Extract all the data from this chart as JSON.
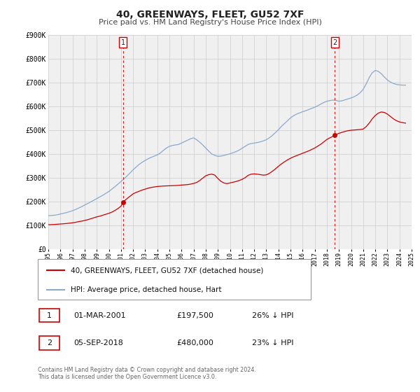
{
  "title": "40, GREENWAYS, FLEET, GU52 7XF",
  "subtitle": "Price paid vs. HM Land Registry's House Price Index (HPI)",
  "legend_label_red": "40, GREENWAYS, FLEET, GU52 7XF (detached house)",
  "legend_label_blue": "HPI: Average price, detached house, Hart",
  "annotation1_label": "1",
  "annotation1_date": "01-MAR-2001",
  "annotation1_price": "£197,500",
  "annotation1_hpi": "26% ↓ HPI",
  "annotation2_label": "2",
  "annotation2_date": "05-SEP-2018",
  "annotation2_price": "£480,000",
  "annotation2_hpi": "23% ↓ HPI",
  "footer": "Contains HM Land Registry data © Crown copyright and database right 2024.\nThis data is licensed under the Open Government Licence v3.0.",
  "red_color": "#cc0000",
  "blue_color": "#88aacc",
  "vline_color": "#cc0000",
  "grid_color": "#cccccc",
  "background_color": "#ffffff",
  "plot_bg_color": "#f0f0f0",
  "ylim": [
    0,
    900000
  ],
  "yticks": [
    0,
    100000,
    200000,
    300000,
    400000,
    500000,
    600000,
    700000,
    800000,
    900000
  ],
  "ytick_labels": [
    "£0",
    "£100K",
    "£200K",
    "£300K",
    "£400K",
    "£500K",
    "£600K",
    "£700K",
    "£800K",
    "£900K"
  ],
  "year_start": 1995,
  "year_end": 2025,
  "vline1_year": 2001.17,
  "vline2_year": 2018.67,
  "dot1_year": 2001.17,
  "dot1_value": 197500,
  "dot2_year": 2018.67,
  "dot2_value": 480000,
  "red_x": [
    1995.0,
    1995.25,
    1995.5,
    1995.75,
    1996.0,
    1996.25,
    1996.5,
    1996.75,
    1997.0,
    1997.25,
    1997.5,
    1997.75,
    1998.0,
    1998.25,
    1998.5,
    1998.75,
    1999.0,
    1999.25,
    1999.5,
    1999.75,
    2000.0,
    2000.25,
    2000.5,
    2000.75,
    2001.0,
    2001.17,
    2001.5,
    2001.75,
    2002.0,
    2002.25,
    2002.5,
    2002.75,
    2003.0,
    2003.25,
    2003.5,
    2003.75,
    2004.0,
    2004.25,
    2004.5,
    2004.75,
    2005.0,
    2005.25,
    2005.5,
    2005.75,
    2006.0,
    2006.25,
    2006.5,
    2006.75,
    2007.0,
    2007.25,
    2007.5,
    2007.75,
    2008.0,
    2008.25,
    2008.5,
    2008.75,
    2009.0,
    2009.25,
    2009.5,
    2009.75,
    2010.0,
    2010.25,
    2010.5,
    2010.75,
    2011.0,
    2011.25,
    2011.5,
    2011.75,
    2012.0,
    2012.25,
    2012.5,
    2012.75,
    2013.0,
    2013.25,
    2013.5,
    2013.75,
    2014.0,
    2014.25,
    2014.5,
    2014.75,
    2015.0,
    2015.25,
    2015.5,
    2015.75,
    2016.0,
    2016.25,
    2016.5,
    2016.75,
    2017.0,
    2017.25,
    2017.5,
    2017.75,
    2018.0,
    2018.25,
    2018.5,
    2018.67,
    2019.0,
    2019.25,
    2019.5,
    2019.75,
    2020.0,
    2020.25,
    2020.5,
    2020.75,
    2021.0,
    2021.25,
    2021.5,
    2021.75,
    2022.0,
    2022.25,
    2022.5,
    2022.75,
    2023.0,
    2023.25,
    2023.5,
    2023.75,
    2024.0,
    2024.25,
    2024.5
  ],
  "red_y": [
    102000,
    102500,
    103000,
    104000,
    105000,
    106000,
    107000,
    108500,
    110000,
    112000,
    115000,
    117000,
    120000,
    123000,
    127000,
    131000,
    135000,
    138000,
    142000,
    146000,
    150000,
    155000,
    162000,
    170000,
    180000,
    197500,
    212000,
    222000,
    232000,
    238000,
    243000,
    248000,
    252000,
    256000,
    259000,
    261000,
    263000,
    264000,
    265000,
    265500,
    266000,
    266500,
    267000,
    268000,
    269000,
    270000,
    271000,
    273000,
    276000,
    280000,
    288000,
    298000,
    308000,
    313000,
    315000,
    311000,
    297000,
    285000,
    278000,
    275000,
    278000,
    281000,
    284000,
    288000,
    293000,
    300000,
    310000,
    315000,
    316000,
    315000,
    313000,
    311000,
    312000,
    318000,
    327000,
    337000,
    348000,
    358000,
    367000,
    375000,
    382000,
    388000,
    393000,
    398000,
    403000,
    408000,
    413000,
    419000,
    425000,
    433000,
    441000,
    451000,
    461000,
    468000,
    474000,
    480000,
    487000,
    491000,
    495000,
    498000,
    500000,
    501000,
    502000,
    503000,
    505000,
    515000,
    530000,
    548000,
    562000,
    572000,
    577000,
    575000,
    568000,
    558000,
    548000,
    540000,
    535000,
    532000,
    530000
  ],
  "blue_x": [
    1995.0,
    1995.25,
    1995.5,
    1995.75,
    1996.0,
    1996.25,
    1996.5,
    1996.75,
    1997.0,
    1997.25,
    1997.5,
    1997.75,
    1998.0,
    1998.25,
    1998.5,
    1998.75,
    1999.0,
    1999.25,
    1999.5,
    1999.75,
    2000.0,
    2000.25,
    2000.5,
    2000.75,
    2001.0,
    2001.25,
    2001.5,
    2001.75,
    2002.0,
    2002.25,
    2002.5,
    2002.75,
    2003.0,
    2003.25,
    2003.5,
    2003.75,
    2004.0,
    2004.25,
    2004.5,
    2004.75,
    2005.0,
    2005.25,
    2005.5,
    2005.75,
    2006.0,
    2006.25,
    2006.5,
    2006.75,
    2007.0,
    2007.25,
    2007.5,
    2007.75,
    2008.0,
    2008.25,
    2008.5,
    2008.75,
    2009.0,
    2009.25,
    2009.5,
    2009.75,
    2010.0,
    2010.25,
    2010.5,
    2010.75,
    2011.0,
    2011.25,
    2011.5,
    2011.75,
    2012.0,
    2012.25,
    2012.5,
    2012.75,
    2013.0,
    2013.25,
    2013.5,
    2013.75,
    2014.0,
    2014.25,
    2014.5,
    2014.75,
    2015.0,
    2015.25,
    2015.5,
    2015.75,
    2016.0,
    2016.25,
    2016.5,
    2016.75,
    2017.0,
    2017.25,
    2017.5,
    2017.75,
    2018.0,
    2018.25,
    2018.5,
    2018.75,
    2019.0,
    2019.25,
    2019.5,
    2019.75,
    2020.0,
    2020.25,
    2020.5,
    2020.75,
    2021.0,
    2021.25,
    2021.5,
    2021.75,
    2022.0,
    2022.25,
    2022.5,
    2022.75,
    2023.0,
    2023.25,
    2023.5,
    2023.75,
    2024.0,
    2024.25,
    2024.5
  ],
  "blue_y": [
    140000,
    141000,
    142000,
    144000,
    147000,
    150000,
    153000,
    157000,
    161000,
    166000,
    172000,
    178000,
    185000,
    191000,
    198000,
    205000,
    212000,
    219000,
    226000,
    234000,
    242000,
    252000,
    262000,
    273000,
    284000,
    295000,
    307000,
    320000,
    333000,
    345000,
    356000,
    365000,
    373000,
    380000,
    386000,
    391000,
    396000,
    404000,
    415000,
    425000,
    432000,
    436000,
    438000,
    440000,
    446000,
    452000,
    458000,
    464000,
    468000,
    460000,
    450000,
    438000,
    425000,
    412000,
    400000,
    394000,
    390000,
    391000,
    394000,
    397000,
    401000,
    405000,
    410000,
    416000,
    424000,
    432000,
    440000,
    444000,
    446000,
    448000,
    451000,
    455000,
    460000,
    468000,
    478000,
    490000,
    502000,
    516000,
    528000,
    540000,
    552000,
    561000,
    568000,
    573000,
    578000,
    582000,
    587000,
    592000,
    597000,
    603000,
    610000,
    617000,
    622000,
    625000,
    627000,
    626000,
    622000,
    624000,
    628000,
    632000,
    636000,
    641000,
    648000,
    658000,
    672000,
    695000,
    722000,
    742000,
    752000,
    748000,
    738000,
    724000,
    712000,
    703000,
    697000,
    693000,
    691000,
    690000,
    690000
  ]
}
